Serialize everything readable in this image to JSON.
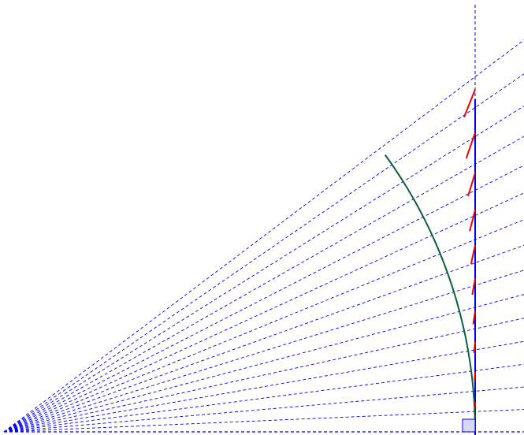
{
  "diagram": {
    "type": "geometric-construction",
    "ray_count": 16,
    "arc_angle_deg": 36,
    "tangent_segment_count": 10,
    "colors": {
      "background": "#ffffff",
      "rays": "#0000ee",
      "vertical_line": "#0000ee",
      "arc": "#0b5e3a",
      "tangent_segments": "#ee0000",
      "right_angle_fill": "#d8d8f6",
      "right_angle_stroke": "#0000ee"
    }
  }
}
